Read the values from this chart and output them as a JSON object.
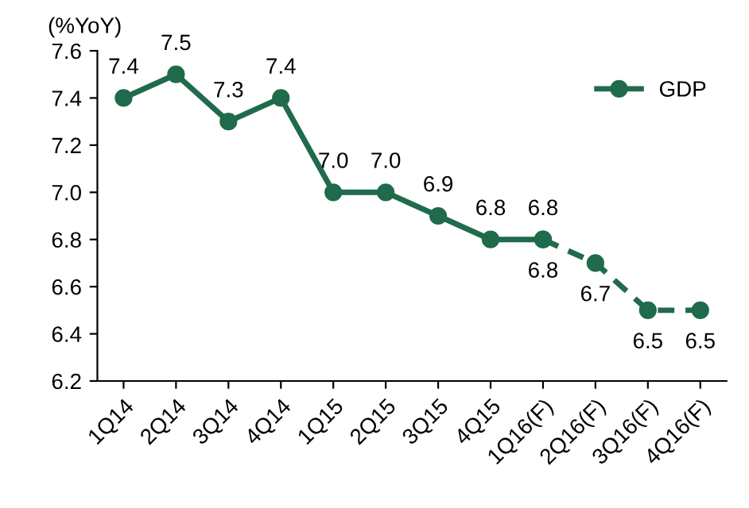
{
  "chart_data": {
    "type": "line",
    "ylabel": "(%YoY)",
    "categories": [
      "1Q14",
      "2Q14",
      "3Q14",
      "4Q14",
      "1Q15",
      "2Q15",
      "3Q15",
      "4Q15",
      "1Q16(F)",
      "2Q16(F)",
      "3Q16(F)",
      "4Q16(F)"
    ],
    "series": [
      {
        "name": "GDP",
        "color": "#1f6b4b",
        "line_style": "solid",
        "values": [
          7.4,
          7.5,
          7.3,
          7.4,
          7.0,
          7.0,
          6.9,
          6.8,
          6.8,
          null,
          null,
          null
        ],
        "value_labels": [
          "7.4",
          "7.5",
          "7.3",
          "7.4",
          "7.0",
          "7.0",
          "6.9",
          "6.8",
          "6.8",
          null,
          null,
          null
        ]
      },
      {
        "color": "#1f6b4b",
        "line_style": "dashed",
        "values": [
          null,
          null,
          null,
          null,
          null,
          null,
          null,
          null,
          6.8,
          6.7,
          6.5,
          6.5
        ],
        "value_labels": [
          null,
          null,
          null,
          null,
          null,
          null,
          null,
          null,
          "6.8",
          "6.7",
          "6.5",
          "6.5"
        ]
      }
    ],
    "marker": "circle",
    "ylim": [
      6.2,
      7.6
    ],
    "yticks": [
      6.2,
      6.4,
      6.6,
      6.8,
      {
        "value": 7,
        "label": "7.0"
      },
      7.2,
      7.4,
      7.6
    ],
    "grid": false,
    "legend": "top right"
  }
}
